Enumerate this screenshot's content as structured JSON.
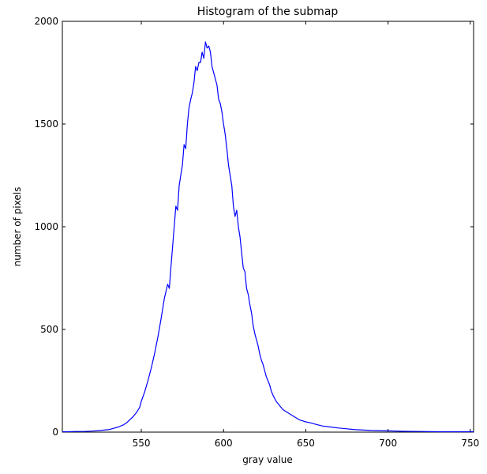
{
  "chart_data": {
    "type": "line",
    "title": "Histogram of the submap",
    "xlabel": "gray value",
    "ylabel": "number of pixels",
    "xlim": [
      502,
      752
    ],
    "ylim": [
      0,
      2000
    ],
    "xticks": [
      550,
      600,
      650,
      700,
      750
    ],
    "yticks": [
      0,
      500,
      1000,
      1500,
      2000
    ],
    "grid": false,
    "line_color": "#0000ff",
    "series": [
      {
        "x": [
          502,
          505,
          510,
          515,
          520,
          525,
          530,
          533,
          536,
          539,
          541,
          543,
          545,
          547,
          549,
          550,
          552,
          554,
          556,
          558,
          560,
          562,
          564,
          566,
          567,
          568,
          569,
          570,
          571,
          572,
          573,
          574,
          575,
          576,
          577,
          578,
          579,
          580,
          581,
          582,
          583,
          584,
          585,
          586,
          587,
          588,
          589,
          590,
          591,
          592,
          593,
          594,
          595,
          596,
          597,
          598,
          599,
          600,
          601,
          602,
          603,
          604,
          605,
          606,
          607,
          608,
          609,
          610,
          611,
          612,
          613,
          614,
          615,
          616,
          617,
          618,
          619,
          620,
          621,
          622,
          623,
          624,
          625,
          626,
          627,
          628,
          629,
          630,
          632,
          634,
          636,
          638,
          640,
          642,
          644,
          646,
          648,
          650,
          653,
          656,
          660,
          665,
          670,
          675,
          680,
          690,
          700,
          710,
          720,
          730,
          740,
          752
        ],
        "y": [
          2,
          2,
          3,
          3,
          5,
          8,
          12,
          18,
          25,
          35,
          45,
          60,
          75,
          95,
          120,
          150,
          195,
          250,
          310,
          380,
          460,
          550,
          650,
          720,
          700,
          800,
          900,
          1000,
          1100,
          1080,
          1200,
          1250,
          1300,
          1400,
          1380,
          1500,
          1580,
          1620,
          1650,
          1700,
          1780,
          1760,
          1800,
          1800,
          1850,
          1820,
          1900,
          1870,
          1880,
          1850,
          1780,
          1750,
          1720,
          1690,
          1620,
          1600,
          1560,
          1500,
          1450,
          1380,
          1300,
          1250,
          1200,
          1100,
          1050,
          1080,
          1000,
          950,
          870,
          800,
          780,
          700,
          670,
          620,
          580,
          520,
          480,
          450,
          420,
          380,
          350,
          330,
          300,
          270,
          250,
          230,
          200,
          180,
          150,
          130,
          110,
          100,
          90,
          80,
          70,
          60,
          55,
          50,
          45,
          38,
          30,
          25,
          20,
          16,
          12,
          8,
          6,
          4,
          3,
          2,
          2,
          2
        ]
      }
    ]
  }
}
